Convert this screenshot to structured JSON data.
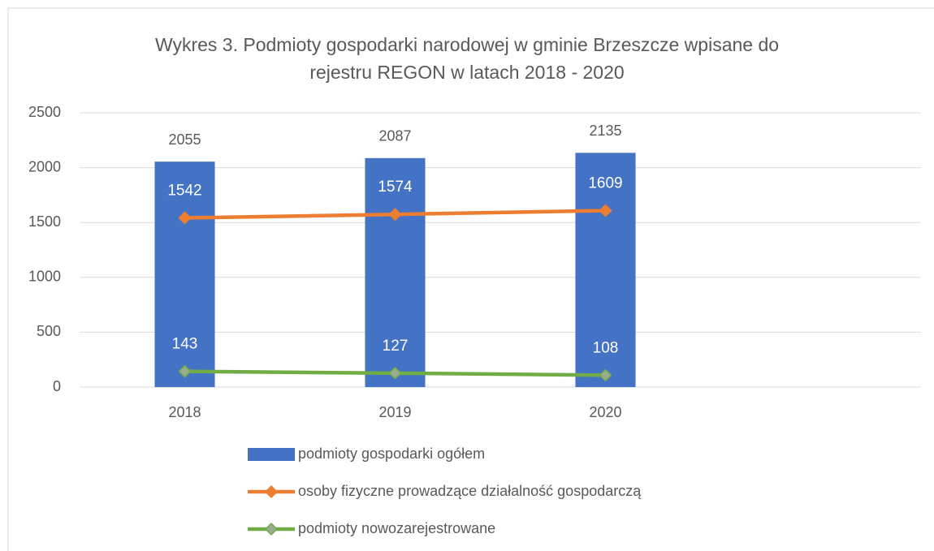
{
  "chart_data": {
    "type": "bar_line",
    "title": "Wykres 3. Podmioty gospodarki narodowej w gminie Brzeszcze wpisane do rejestru REGON w latach 2018 - 2020",
    "categories": [
      "2018",
      "2019",
      "2020",
      null
    ],
    "series": [
      {
        "name": "podmioty gospodarki ogółem",
        "type": "bar",
        "color": "#4472c4",
        "values": [
          2055,
          2087,
          2135,
          null
        ]
      },
      {
        "name": "osoby fizyczne prowadzące działalność gospodarczą",
        "type": "line",
        "color": "#ed7d31",
        "marker_color": "#ed7d31",
        "values": [
          1542,
          1574,
          1609,
          null
        ]
      },
      {
        "name": "podmioty nowozarejestrowane",
        "type": "line",
        "color": "#70ad47",
        "marker_color": "#9bab8f",
        "values": [
          143,
          127,
          108,
          null
        ]
      }
    ],
    "ylim": [
      0,
      2500
    ],
    "yticks": [
      0,
      500,
      1000,
      1500,
      2000,
      2500
    ],
    "grid": true,
    "legend": "bottom"
  }
}
